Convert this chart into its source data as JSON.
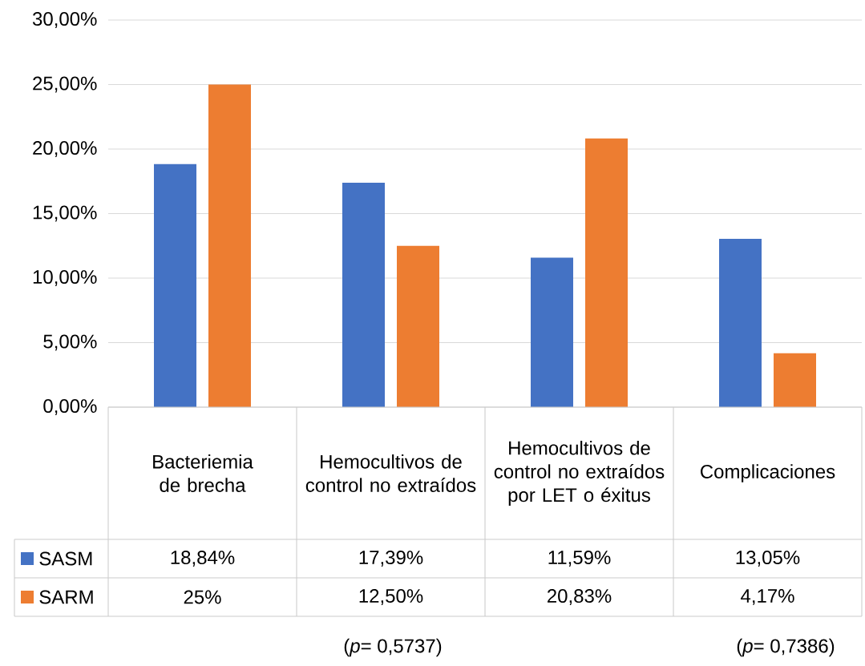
{
  "chart_data": {
    "type": "bar",
    "categories": [
      "Bacteriemia de brecha",
      "Hemocultivos de control no extraídos",
      "Hemocultivos de control no extraídos por LET o éxitus",
      "Complicaciones"
    ],
    "series": [
      {
        "name": "SASM",
        "color": "#4472c4",
        "values": [
          18.84,
          17.39,
          11.59,
          13.05
        ],
        "value_labels": [
          "18,84%",
          "17,39%",
          "11,59%",
          "13,05%"
        ]
      },
      {
        "name": "SARM",
        "color": "#ed7d31",
        "values": [
          25,
          12.5,
          20.83,
          4.17
        ],
        "value_labels": [
          "25%",
          "12,50%",
          "20,83%",
          "4,17%"
        ]
      }
    ],
    "ylim": [
      0,
      30
    ],
    "yticks": [
      {
        "value": 0,
        "label": "0,00%"
      },
      {
        "value": 5,
        "label": "5,00%"
      },
      {
        "value": 10,
        "label": "10,00%"
      },
      {
        "value": 15,
        "label": "15,00%"
      },
      {
        "value": 20,
        "label": "20,00%"
      },
      {
        "value": 25,
        "label": "25,00%"
      },
      {
        "value": 30,
        "label": "30,00%"
      }
    ],
    "grid": "y",
    "legend": "bottom left",
    "annotations": [
      "(*p*= 0,5737)",
      "(*p*= 0,7386)"
    ]
  }
}
